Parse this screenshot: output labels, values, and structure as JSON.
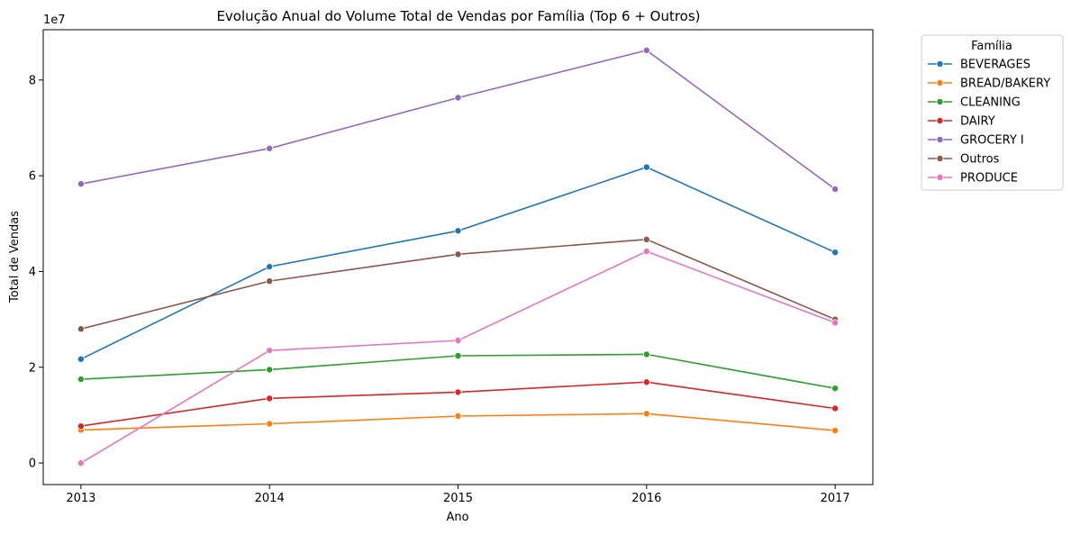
{
  "chart_data": {
    "type": "line",
    "title": "Evolução Anual do Volume Total de Vendas por Família (Top 6 + Outros)",
    "xlabel": "Ano",
    "ylabel": "Total de Vendas",
    "y_offset_text": "1e7",
    "x": [
      2013,
      2014,
      2015,
      2016,
      2017
    ],
    "xlim": [
      2012.8,
      2017.2
    ],
    "ylim": [
      -4500000,
      90500000
    ],
    "y_scale": 10000000,
    "y_ticks": [
      0,
      2,
      4,
      6,
      8
    ],
    "grid": false,
    "legend": {
      "title": "Família",
      "placement": "outside-top-right"
    },
    "series": [
      {
        "name": "BEVERAGES",
        "color": "#1f77b4",
        "values": [
          21700000,
          41000000,
          48500000,
          61800000,
          44000000
        ]
      },
      {
        "name": "BREAD/BAKERY",
        "color": "#ff7f0e",
        "values": [
          6900000,
          8200000,
          9800000,
          10300000,
          6800000
        ]
      },
      {
        "name": "CLEANING",
        "color": "#2ca02c",
        "values": [
          17500000,
          19500000,
          22400000,
          22700000,
          15600000
        ]
      },
      {
        "name": "DAIRY",
        "color": "#d62728",
        "values": [
          7700000,
          13500000,
          14800000,
          16900000,
          11400000
        ]
      },
      {
        "name": "GROCERY I",
        "color": "#9467bd",
        "values": [
          58300000,
          65700000,
          76300000,
          86200000,
          57200000
        ]
      },
      {
        "name": "Outros",
        "color": "#8c564b",
        "values": [
          28000000,
          38000000,
          43600000,
          46700000,
          30000000
        ]
      },
      {
        "name": "PRODUCE",
        "color": "#e377c2",
        "values": [
          0,
          23500000,
          25600000,
          44200000,
          29300000
        ]
      }
    ]
  }
}
